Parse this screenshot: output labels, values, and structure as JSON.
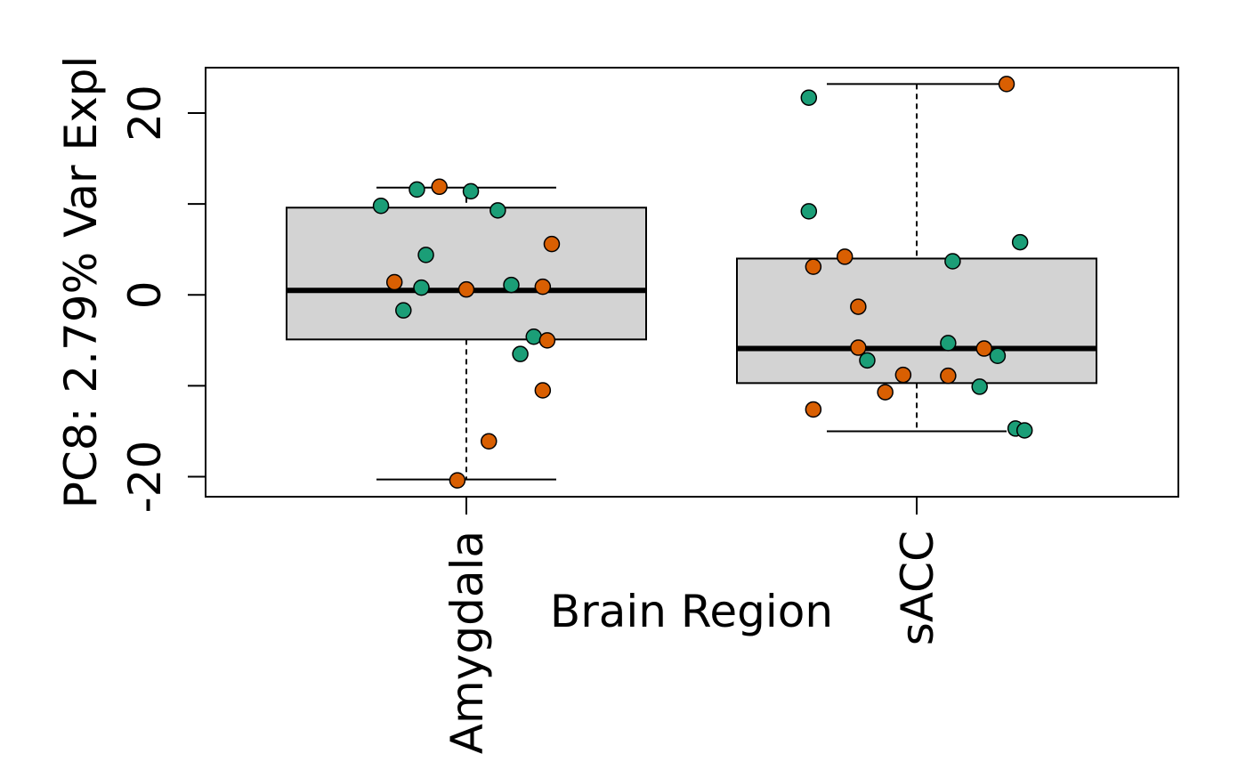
{
  "chart_data": {
    "type": "box",
    "xlabel": "Brain Region",
    "ylabel": "PC8: 2.79% Var Expl",
    "categories": [
      "Amygdala",
      "sACC"
    ],
    "ylim": [
      -22.2,
      25.0
    ],
    "yticks": [
      -20,
      -10,
      0,
      10,
      20
    ],
    "ytick_labels": [
      "-20",
      "",
      "0",
      "",
      "20"
    ],
    "grid": false,
    "box_fill": "#d3d3d3",
    "point_colors": {
      "teal": "#1b9e77",
      "orange": "#d95f02"
    },
    "boxes": [
      {
        "category": "Amygdala",
        "whisker_low": -20.3,
        "q1": -4.9,
        "median": 0.5,
        "q3": 9.6,
        "whisker_high": 11.8
      },
      {
        "category": "sACC",
        "whisker_low": -15.0,
        "q1": -9.7,
        "median": -5.9,
        "q3": 4.0,
        "whisker_high": 23.2
      }
    ],
    "points": [
      {
        "category": "Amygdala",
        "jitter": -0.19,
        "value": 9.8,
        "color": "teal"
      },
      {
        "category": "Amygdala",
        "jitter": -0.11,
        "value": 11.6,
        "color": "teal"
      },
      {
        "category": "Amygdala",
        "jitter": -0.06,
        "value": 11.9,
        "color": "orange"
      },
      {
        "category": "Amygdala",
        "jitter": 0.01,
        "value": 11.4,
        "color": "teal"
      },
      {
        "category": "Amygdala",
        "jitter": 0.07,
        "value": 9.3,
        "color": "teal"
      },
      {
        "category": "Amygdala",
        "jitter": 0.19,
        "value": 5.6,
        "color": "orange"
      },
      {
        "category": "Amygdala",
        "jitter": -0.09,
        "value": 4.4,
        "color": "teal"
      },
      {
        "category": "Amygdala",
        "jitter": -0.16,
        "value": 1.4,
        "color": "orange"
      },
      {
        "category": "Amygdala",
        "jitter": -0.1,
        "value": 0.8,
        "color": "teal"
      },
      {
        "category": "Amygdala",
        "jitter": 0.0,
        "value": 0.6,
        "color": "orange"
      },
      {
        "category": "Amygdala",
        "jitter": 0.1,
        "value": 1.1,
        "color": "teal"
      },
      {
        "category": "Amygdala",
        "jitter": 0.17,
        "value": 0.9,
        "color": "orange"
      },
      {
        "category": "Amygdala",
        "jitter": -0.14,
        "value": -1.7,
        "color": "teal"
      },
      {
        "category": "Amygdala",
        "jitter": 0.15,
        "value": -4.6,
        "color": "teal"
      },
      {
        "category": "Amygdala",
        "jitter": 0.18,
        "value": -5.0,
        "color": "orange"
      },
      {
        "category": "Amygdala",
        "jitter": 0.12,
        "value": -6.5,
        "color": "teal"
      },
      {
        "category": "Amygdala",
        "jitter": 0.17,
        "value": -10.5,
        "color": "orange"
      },
      {
        "category": "Amygdala",
        "jitter": 0.05,
        "value": -16.1,
        "color": "orange"
      },
      {
        "category": "Amygdala",
        "jitter": -0.02,
        "value": -20.4,
        "color": "orange"
      },
      {
        "category": "sACC",
        "jitter": -0.24,
        "value": 21.7,
        "color": "teal"
      },
      {
        "category": "sACC",
        "jitter": 0.2,
        "value": 23.2,
        "color": "orange"
      },
      {
        "category": "sACC",
        "jitter": -0.24,
        "value": 9.2,
        "color": "teal"
      },
      {
        "category": "sACC",
        "jitter": 0.23,
        "value": 5.8,
        "color": "teal"
      },
      {
        "category": "sACC",
        "jitter": -0.16,
        "value": 4.2,
        "color": "orange"
      },
      {
        "category": "sACC",
        "jitter": -0.23,
        "value": 3.1,
        "color": "orange"
      },
      {
        "category": "sACC",
        "jitter": 0.08,
        "value": 3.7,
        "color": "teal"
      },
      {
        "category": "sACC",
        "jitter": -0.13,
        "value": -1.3,
        "color": "orange"
      },
      {
        "category": "sACC",
        "jitter": 0.07,
        "value": -5.3,
        "color": "teal"
      },
      {
        "category": "sACC",
        "jitter": 0.15,
        "value": -5.9,
        "color": "orange"
      },
      {
        "category": "sACC",
        "jitter": -0.13,
        "value": -5.8,
        "color": "orange"
      },
      {
        "category": "sACC",
        "jitter": 0.18,
        "value": -6.7,
        "color": "teal"
      },
      {
        "category": "sACC",
        "jitter": -0.11,
        "value": -7.2,
        "color": "teal"
      },
      {
        "category": "sACC",
        "jitter": -0.03,
        "value": -8.8,
        "color": "orange"
      },
      {
        "category": "sACC",
        "jitter": 0.07,
        "value": -8.9,
        "color": "orange"
      },
      {
        "category": "sACC",
        "jitter": 0.14,
        "value": -10.1,
        "color": "teal"
      },
      {
        "category": "sACC",
        "jitter": -0.07,
        "value": -10.7,
        "color": "orange"
      },
      {
        "category": "sACC",
        "jitter": -0.23,
        "value": -12.6,
        "color": "orange"
      },
      {
        "category": "sACC",
        "jitter": 0.22,
        "value": -14.7,
        "color": "teal"
      },
      {
        "category": "sACC",
        "jitter": 0.24,
        "value": -14.9,
        "color": "teal"
      }
    ]
  }
}
